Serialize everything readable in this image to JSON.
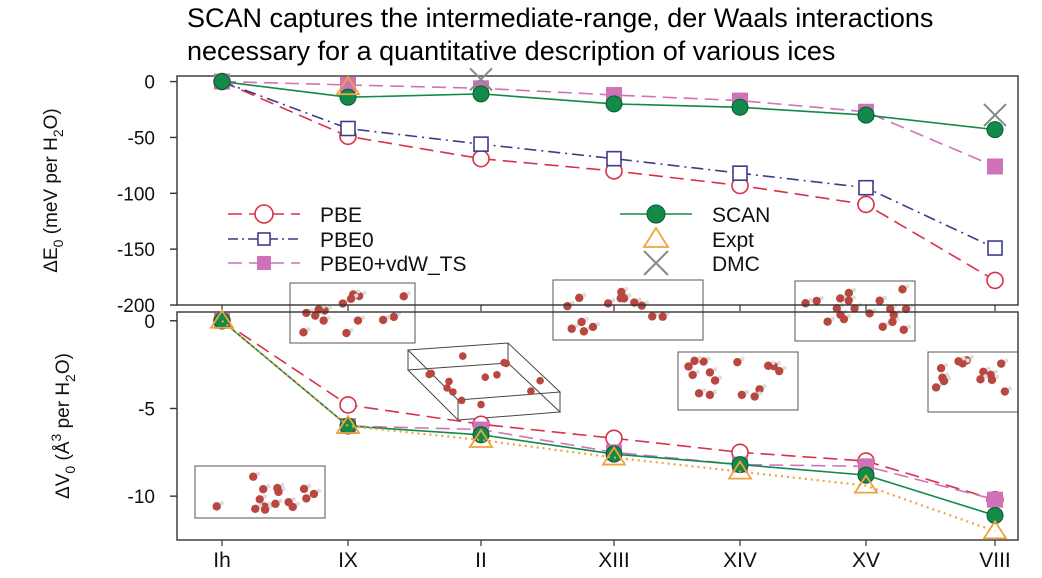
{
  "header": {
    "title_line1": "SCAN captures the intermediate-range, der Waals interactions",
    "title_line2": "necessary for a quantitative description of various ices"
  },
  "colors": {
    "PBE": "#d9304a",
    "PBE0": "#3c3c8c",
    "PBE0+vdW_TS": "#cf72b8",
    "SCAN": "#118a4a",
    "Expt": "#f0a23c",
    "DMC": "#888888",
    "atom": "#b8473f"
  },
  "chart_data": [
    {
      "type": "line",
      "name": "energy",
      "ylabel_main": "ΔE",
      "ylabel_sub": "0",
      "ylabel_rest": " (meV per H",
      "ylabel_sub2": "2",
      "ylabel_end": "O)",
      "ylim": [
        -200,
        5
      ],
      "yticks": [
        0,
        -50,
        -100,
        -150,
        -200
      ],
      "categories": [
        "Ih",
        "IX",
        "II",
        "XIII",
        "XIV",
        "XV",
        "VIII"
      ],
      "legend_position": "lower-center",
      "series": [
        {
          "name": "PBE",
          "marker": "circle-open",
          "dash": "dash",
          "values": [
            0,
            -49,
            -69,
            -80,
            -93,
            -110,
            -178
          ]
        },
        {
          "name": "PBE0",
          "marker": "square-open",
          "dash": "dashdot",
          "values": [
            0,
            -42,
            -56,
            -69,
            -82,
            -95,
            -149
          ]
        },
        {
          "name": "PBE0+vdW_TS",
          "marker": "square-filled",
          "dash": "dash",
          "values": [
            0,
            -3,
            -6,
            -12,
            -17,
            -27,
            -76
          ]
        },
        {
          "name": "SCAN",
          "marker": "circle-filled",
          "dash": "solid",
          "values": [
            0,
            -14,
            -11,
            -20,
            -23,
            -30,
            -43
          ]
        },
        {
          "name": "Expt",
          "marker": "triangle-open",
          "dash": "none",
          "values": [
            null,
            -5,
            null,
            null,
            null,
            null,
            null
          ]
        },
        {
          "name": "DMC",
          "marker": "cross",
          "dash": "none",
          "values": [
            null,
            null,
            2,
            null,
            null,
            null,
            -30
          ]
        }
      ]
    },
    {
      "type": "line",
      "name": "volume",
      "ylabel_main": "ΔV",
      "ylabel_sub": "0",
      "ylabel_rest": " (Å",
      "ylabel_sup": "3",
      "ylabel_rest2": " per H",
      "ylabel_sub2": "2",
      "ylabel_end": "O)",
      "ylim": [
        -12.5,
        0.5
      ],
      "yticks": [
        0,
        -5,
        -10
      ],
      "categories": [
        "Ih",
        "IX",
        "II",
        "XIII",
        "XIV",
        "XV",
        "VIII"
      ],
      "series": [
        {
          "name": "PBE",
          "marker": "circle-open",
          "dash": "dash",
          "values": [
            0,
            -4.8,
            -5.9,
            -6.7,
            -7.5,
            -8.0,
            -10.2
          ]
        },
        {
          "name": "PBE0+vdW_TS",
          "marker": "square-filled",
          "dash": "dash",
          "values": [
            0,
            -6.0,
            -6.2,
            -7.5,
            -8.2,
            -8.3,
            -10.2
          ]
        },
        {
          "name": "SCAN",
          "marker": "circle-filled",
          "dash": "solid",
          "values": [
            0,
            -6.0,
            -6.5,
            -7.6,
            -8.2,
            -8.8,
            -11.1
          ]
        },
        {
          "name": "Expt",
          "marker": "triangle-open",
          "dash": "dot",
          "values": [
            0,
            -6.0,
            -6.8,
            -7.8,
            -8.6,
            -9.4,
            -12.0
          ]
        }
      ]
    }
  ]
}
